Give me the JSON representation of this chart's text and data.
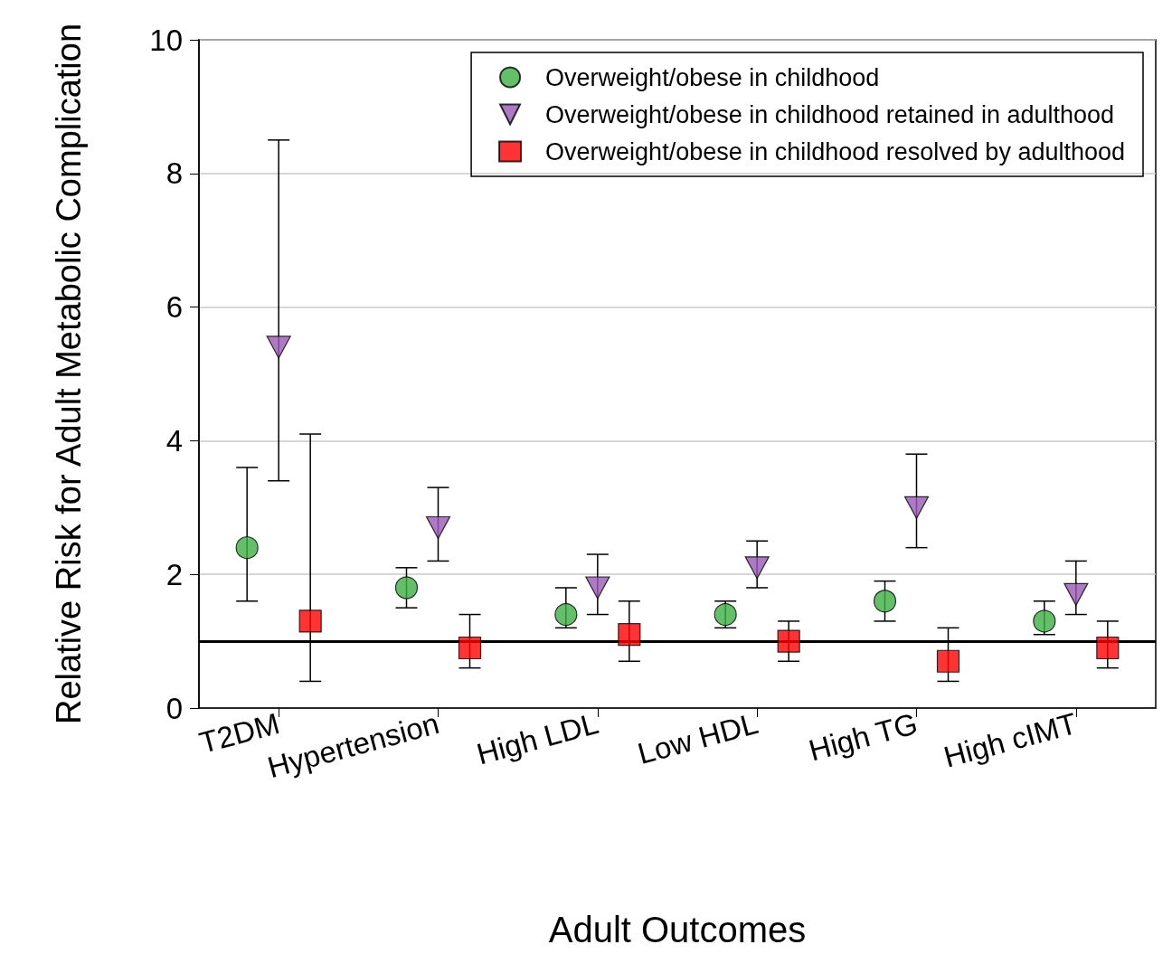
{
  "chart_data": {
    "type": "scatter",
    "xlabel": "Adult Outcomes",
    "ylabel": "Relative Risk for Adult Metabolic Complication",
    "categories": [
      "T2DM",
      "Hypertension",
      "High LDL",
      "Low HDL",
      "High TG",
      "High cIMT"
    ],
    "series": [
      {
        "name": "Overweight/obese in childhood",
        "color": "#3cb043",
        "marker": "circle",
        "values": [
          2.4,
          1.8,
          1.4,
          1.4,
          1.6,
          1.3
        ],
        "errors": [
          [
            1.6,
            3.6
          ],
          [
            1.5,
            2.1
          ],
          [
            1.2,
            1.8
          ],
          [
            1.2,
            1.6
          ],
          [
            1.3,
            1.9
          ],
          [
            1.1,
            1.6
          ]
        ]
      },
      {
        "name": "Overweight/obese in childhood retained in adulthood",
        "color": "#9b59b6",
        "marker": "triangle",
        "values": [
          5.4,
          2.7,
          1.8,
          2.1,
          3.0,
          1.7
        ],
        "errors": [
          [
            3.4,
            8.5
          ],
          [
            2.2,
            3.3
          ],
          [
            1.4,
            2.3
          ],
          [
            1.8,
            2.5
          ],
          [
            2.4,
            3.8
          ],
          [
            1.4,
            2.2
          ]
        ]
      },
      {
        "name": "Overweight/obese in childhood resolved by adulthood",
        "color": "#ff0000",
        "marker": "square",
        "values": [
          1.3,
          0.9,
          1.1,
          1.0,
          0.7,
          0.9
        ],
        "errors": [
          [
            0.4,
            4.1
          ],
          [
            0.6,
            1.4
          ],
          [
            0.7,
            1.6
          ],
          [
            0.7,
            1.3
          ],
          [
            0.4,
            1.2
          ],
          [
            0.6,
            1.3
          ]
        ]
      }
    ],
    "ylim": [
      0,
      10
    ],
    "yticks": [
      0,
      2,
      4,
      6,
      8,
      10
    ],
    "grid": "y",
    "legend": "top right",
    "ref_lines": [
      {
        "axis": "y",
        "value": 1,
        "color": "#000000",
        "line_style": "solid"
      }
    ]
  }
}
